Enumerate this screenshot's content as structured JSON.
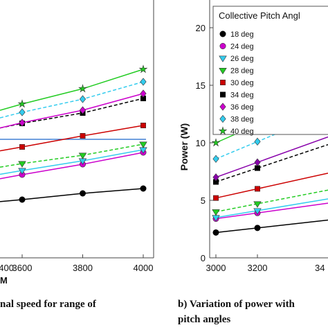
{
  "captions": {
    "left_line1": "nal speed for range of",
    "right_line1": "b) Variation of power with",
    "right_line2": "pitch angles"
  },
  "chart_data": [
    {
      "type": "line",
      "title": "",
      "xlabel": "M",
      "ylabel": "",
      "x_ticks": [
        "3600",
        "3800",
        "4000"
      ],
      "grid": false,
      "series": [
        {
          "name": "18 deg",
          "color": "#000000",
          "marker": "circle",
          "dash": false,
          "x": [
            3600,
            3800,
            4000
          ],
          "y": [
            288,
            279,
            272
          ]
        },
        {
          "name": "24 deg",
          "color": "#cc00cc",
          "marker": "circle",
          "dash": false,
          "x": [
            3600,
            3800,
            4000
          ],
          "y": [
            252,
            237,
            220
          ]
        },
        {
          "name": "26 deg",
          "color": "#33ccee",
          "marker": "triangle-down",
          "dash": false,
          "x": [
            3600,
            3800,
            4000
          ],
          "y": [
            246,
            232,
            216
          ]
        },
        {
          "name": "28 deg",
          "color": "#22cc22",
          "marker": "triangle-down",
          "dash": true,
          "x": [
            3600,
            3800,
            4000
          ],
          "y": [
            236,
            224,
            208
          ]
        },
        {
          "name": "30 deg",
          "color": "#cc0000",
          "marker": "square",
          "dash": false,
          "x": [
            3600,
            3800,
            4000
          ],
          "y": [
            212,
            196,
            181
          ]
        },
        {
          "name": "34 deg",
          "color": "#000000",
          "marker": "square",
          "dash": true,
          "x": [
            3600,
            3800,
            4000
          ],
          "y": [
            178,
            163,
            142
          ]
        },
        {
          "name": "36 deg",
          "color": "#cc00cc",
          "marker": "diamond",
          "dash": false,
          "x": [
            3600,
            3800,
            4000
          ],
          "y": [
            177,
            159,
            135
          ]
        },
        {
          "name": "38 deg",
          "color": "#33ccee",
          "marker": "diamond",
          "dash": true,
          "x": [
            3600,
            3800,
            4000
          ],
          "y": [
            162,
            143,
            118
          ]
        },
        {
          "name": "40 deg",
          "color": "#22cc22",
          "marker": "star",
          "dash": false,
          "x": [
            3600,
            3800,
            4000
          ],
          "y": [
            150,
            128,
            100
          ]
        }
      ],
      "reference_line": {
        "color": "#1a66cc"
      }
    },
    {
      "type": "line",
      "title": "",
      "xlabel": "",
      "ylabel": "Power (W)",
      "x_ticks": [
        "3000",
        "3200",
        "34"
      ],
      "y_ticks": [
        "0",
        "5",
        "10",
        "15",
        "20"
      ],
      "ylim": [
        0,
        21
      ],
      "grid": false,
      "legend": {
        "title": "Collective Pitch Angl",
        "placement": "top-right"
      },
      "series": [
        {
          "name": "18 deg",
          "color": "#000000",
          "marker": "circle",
          "dash": false,
          "x": [
            3000,
            3200
          ],
          "y": [
            2.2,
            2.6
          ]
        },
        {
          "name": "24 deg",
          "color": "#cc00cc",
          "marker": "circle",
          "dash": false,
          "x": [
            3000,
            3200
          ],
          "y": [
            3.4,
            3.9
          ]
        },
        {
          "name": "26 deg",
          "color": "#33ccee",
          "marker": "triangle-down",
          "dash": false,
          "x": [
            3000,
            3200
          ],
          "y": [
            3.5,
            4.1
          ]
        },
        {
          "name": "28 deg",
          "color": "#22cc22",
          "marker": "triangle-down",
          "dash": true,
          "x": [
            3000,
            3200
          ],
          "y": [
            4.0,
            4.7
          ]
        },
        {
          "name": "30 deg",
          "color": "#cc0000",
          "marker": "square",
          "dash": false,
          "x": [
            3000,
            3200
          ],
          "y": [
            5.2,
            6.0
          ]
        },
        {
          "name": "34 deg",
          "color": "#000000",
          "marker": "square",
          "dash": true,
          "x": [
            3000,
            3200
          ],
          "y": [
            6.6,
            7.8
          ]
        },
        {
          "name": "36 deg",
          "color": "#8800aa",
          "marker": "diamond",
          "dash": false,
          "x": [
            3000,
            3200
          ],
          "y": [
            7.0,
            8.3
          ]
        },
        {
          "name": "38 deg",
          "color": "#33ccee",
          "marker": "diamond",
          "dash": true,
          "x": [
            3000,
            3200
          ],
          "y": [
            8.6,
            10.1
          ]
        },
        {
          "name": "40 deg",
          "color": "#22cc22",
          "marker": "star",
          "dash": false,
          "x": [
            3000,
            3200
          ],
          "y": [
            10.0,
            11.6
          ]
        }
      ]
    }
  ]
}
